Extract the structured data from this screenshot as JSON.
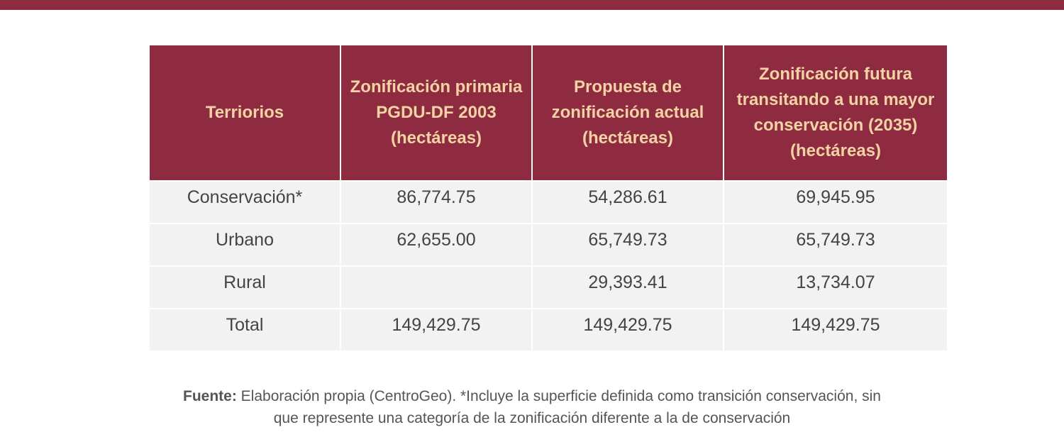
{
  "table": {
    "header": [
      "Terriorios",
      "Zonificación primaria PGDU-DF 2003 (hectáreas)",
      "Propuesta de zonificación actual (hectáreas)",
      "Zonificación futura transitando a una mayor conservación (2035) (hectáreas)"
    ],
    "rows": [
      [
        "Conservación*",
        "86,774.75",
        "54,286.61",
        "69,945.95"
      ],
      [
        "Urbano",
        "62,655.00",
        "65,749.73",
        "65,749.73"
      ],
      [
        "Rural",
        null,
        "29,393.41",
        "13,734.07"
      ],
      [
        "Total",
        "149,429.75",
        "149,429.75",
        "149,429.75"
      ]
    ]
  },
  "source": {
    "label": "Fuente:",
    "lines": [
      "Elaboración propia (CentroGeo). *Incluye la superficie definida como transición conservación, sin",
      "que represente una categoría de la zonificación diferente a la de conservación"
    ]
  }
}
